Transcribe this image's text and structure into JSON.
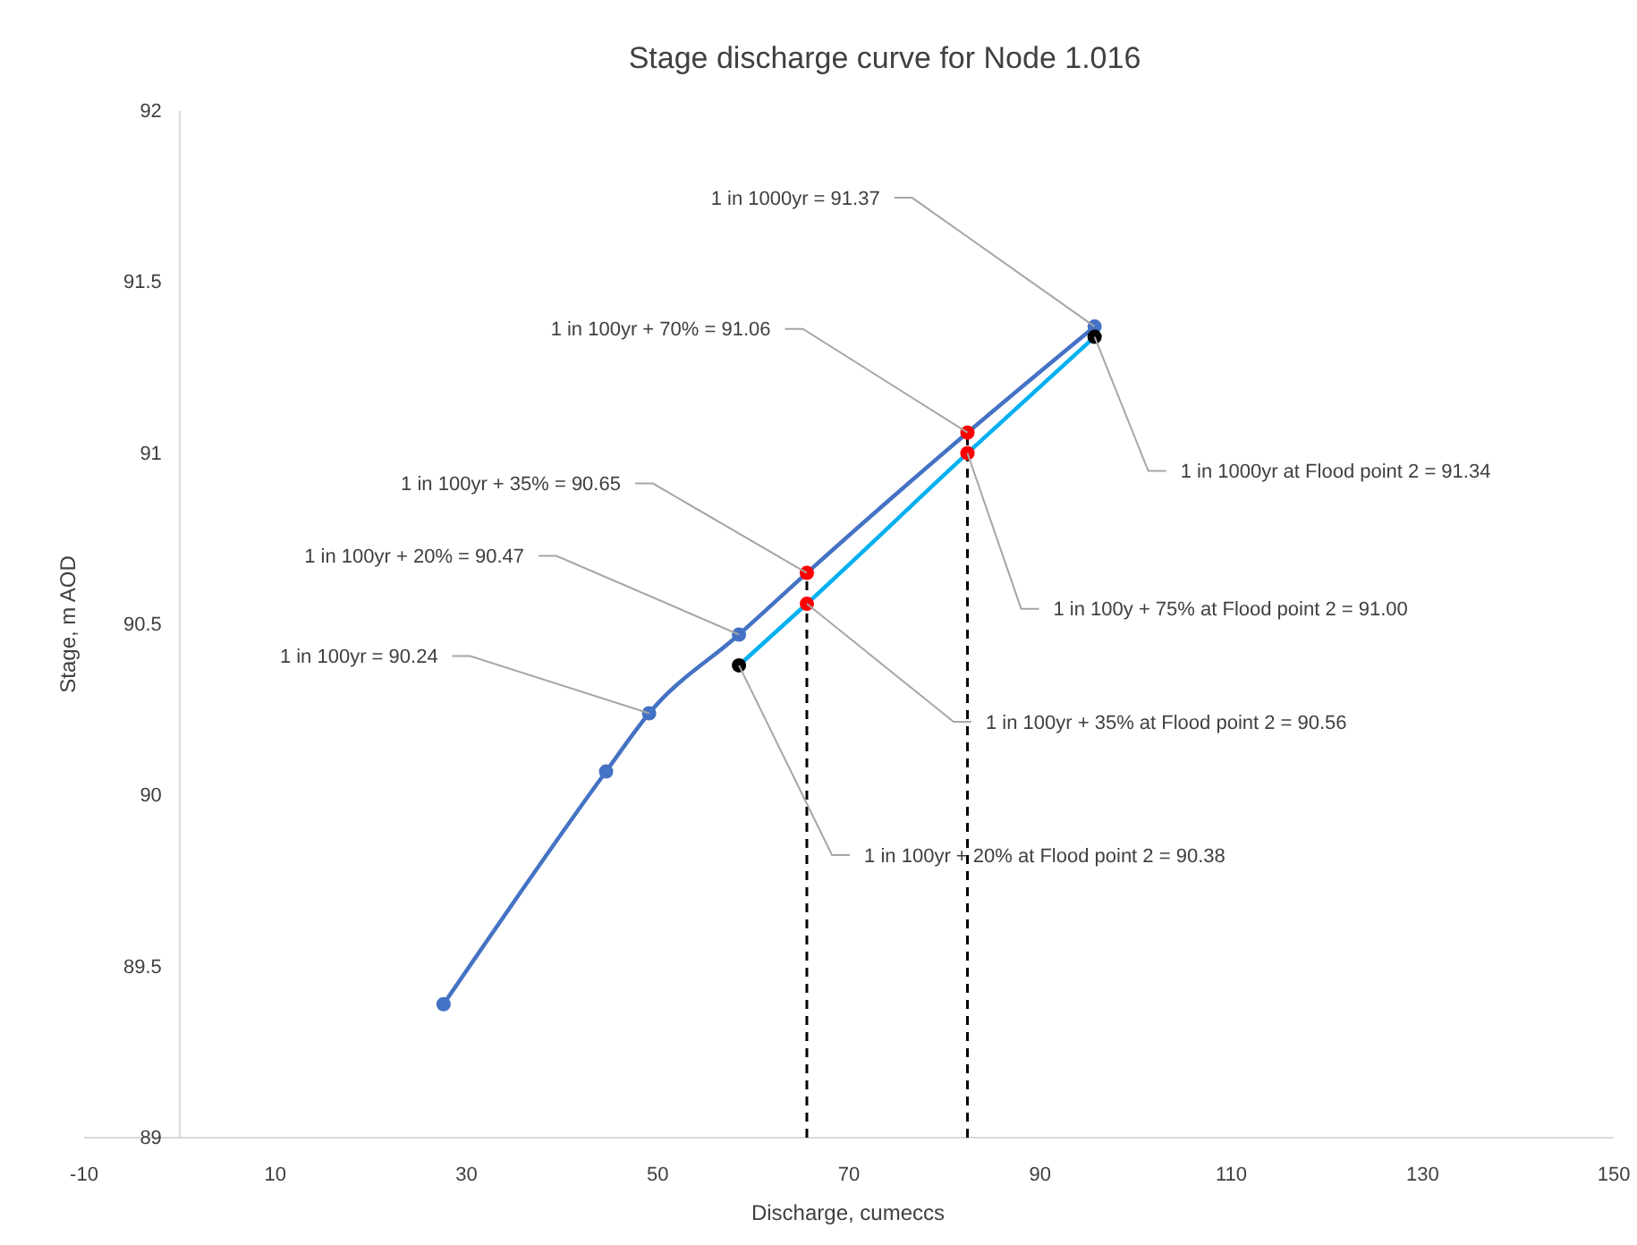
{
  "chart_data": {
    "type": "line",
    "title": "Stage discharge curve for Node 1.016",
    "xlabel": "Discharge, cumeccs",
    "ylabel": "Stage, m AOD",
    "xlim": [
      -10,
      150
    ],
    "xticks": [
      -10,
      10,
      30,
      50,
      70,
      90,
      110,
      130,
      150
    ],
    "ylim": [
      89,
      92
    ],
    "yticks": [
      89,
      89.5,
      90,
      90.5,
      91,
      91.5,
      92
    ],
    "grid": false,
    "marker": "circle",
    "line_style": "solid",
    "series": [
      {
        "color": "#4472c4",
        "x": [
          27.6,
          44.6,
          49.1,
          58.5,
          65.6,
          82.4,
          95.7
        ],
        "values": [
          89.39,
          90.07,
          90.24,
          90.47,
          90.65,
          91.06,
          91.37
        ],
        "colors": [
          "#4472c4",
          "#4472c4",
          "#4472c4",
          "#4472c4",
          "#ff0000",
          "#ff0000",
          "#4472c4"
        ]
      },
      {
        "color": "#00b0f0",
        "x": [
          58.5,
          65.6,
          82.4,
          95.7
        ],
        "values": [
          90.38,
          90.56,
          91.0,
          91.34
        ],
        "colors": [
          "#000000",
          "#ff0000",
          "#ff0000",
          "#000000"
        ]
      }
    ],
    "ref_lines": [
      {
        "axis": "x",
        "value": 65.6,
        "color": "#000000",
        "line_style": "dashed"
      },
      {
        "axis": "x",
        "value": 82.4,
        "color": "#000000",
        "line_style": "dashed"
      }
    ],
    "annotations": [
      {
        "text": "1 in 1000yr = 91.37",
        "x": 95.7,
        "y": 91.37
      },
      {
        "text": "1 in 100yr + 70%  = 91.06",
        "x": 82.4,
        "y": 91.06
      },
      {
        "text": "1 in 100yr + 35%  = 90.65",
        "x": 65.6,
        "y": 90.65
      },
      {
        "text": "1 in 100yr + 20% = 90.47",
        "x": 58.5,
        "y": 90.47
      },
      {
        "text": "1 in 100yr = 90.24",
        "x": 49.1,
        "y": 90.24
      },
      {
        "text": "1 in 1000yr at Flood point 2 = 91.34",
        "x": 95.7,
        "y": 91.34
      },
      {
        "text": "1 in 100y + 75% at Flood point 2 = 91.00",
        "x": 82.4,
        "y": 91.0
      },
      {
        "text": "1 in 100yr + 35% at Flood point 2 = 90.56",
        "x": 65.6,
        "y": 90.56
      },
      {
        "text": "1 in 100yr + 20% at Flood point 2 = 90.38",
        "x": 58.5,
        "y": 90.38
      }
    ]
  }
}
